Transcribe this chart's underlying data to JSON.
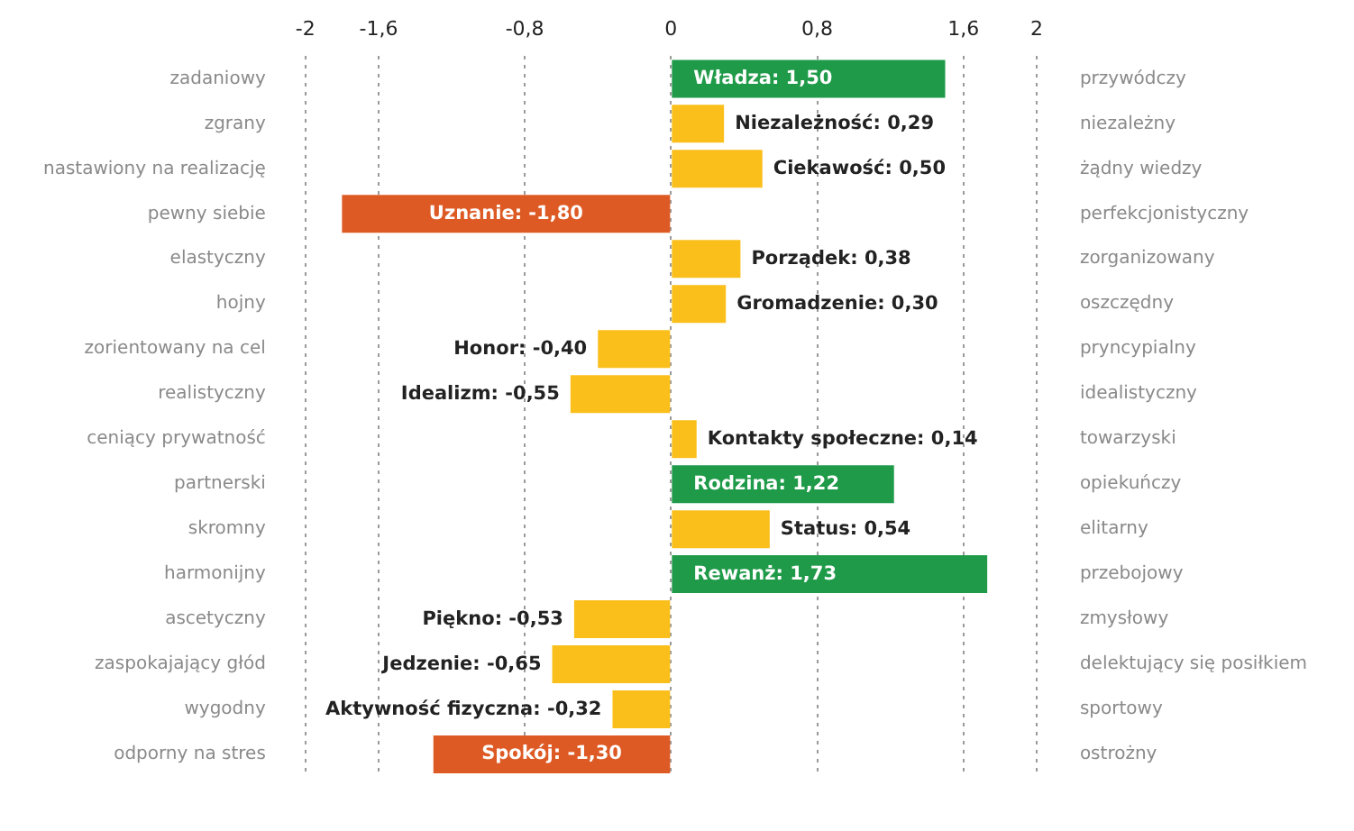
{
  "chart_data": {
    "type": "bar",
    "orientation": "horizontal",
    "categories": [
      "zadaniowy",
      "zgrany",
      "nastawiony na realizację",
      "pewny siebie",
      "elastyczny",
      "hojny",
      "zorientowany na cel",
      "realistyczny",
      "ceniący prywatność",
      "partnerski",
      "skromny",
      "harmonijny",
      "ascetyczny",
      "zaspokajający głód",
      "wygodny",
      "odporny na stres"
    ],
    "y2_categories": [
      "przywódczy",
      "niezależny",
      "żądny wiedzy",
      "perfekcjonistyczny",
      "zorganizowany",
      "oszczędny",
      "pryncypialny",
      "idealistyczny",
      "towarzyski",
      "opiekuńczy",
      "elitarny",
      "przebojowy",
      "zmysłowy",
      "delektujący się posiłkiem",
      "sportowy",
      "ostrożny"
    ],
    "values": [
      1.5,
      0.29,
      0.5,
      -1.8,
      0.38,
      0.3,
      -0.4,
      -0.55,
      0.14,
      1.22,
      0.54,
      1.73,
      -0.53,
      -0.65,
      -0.32,
      -1.3
    ],
    "colors": [
      "#1e9a48",
      "#fbbf1c",
      "#fbbf1c",
      "#de5a24",
      "#fbbf1c",
      "#fbbf1c",
      "#fbbf1c",
      "#fbbf1c",
      "#fbbf1c",
      "#1e9a48",
      "#fbbf1c",
      "#1e9a48",
      "#fbbf1c",
      "#fbbf1c",
      "#fbbf1c",
      "#de5a24"
    ],
    "value_labels": [
      "Władza: 1,50",
      "Niezależność: 0,29",
      "Ciekawość: 0,50",
      "Uznanie: -1,80",
      "Porządek: 0,38",
      "Gromadzenie: 0,30",
      "Honor: -0,40",
      "Idealizm: -0,55",
      "Kontakty społeczne: 0,14",
      "Rodzina: 1,22",
      "Status: 0,54",
      "Rewanż: 1,73",
      "Piękno: -0,53",
      "Jedzenie: -0,65",
      "Aktywność fizyczna: -0,32",
      "Spokój: -1,30"
    ],
    "xlim": [
      -2,
      2
    ],
    "xticks": [
      -2,
      {
        "value": -1.6,
        "label": "-1,6"
      },
      {
        "value": -0.8,
        "label": "-0,8"
      },
      0,
      {
        "value": 0.8,
        "label": "0,8"
      },
      {
        "value": 1.6,
        "label": "1,6"
      },
      2
    ],
    "grid": "x",
    "legend": false
  }
}
